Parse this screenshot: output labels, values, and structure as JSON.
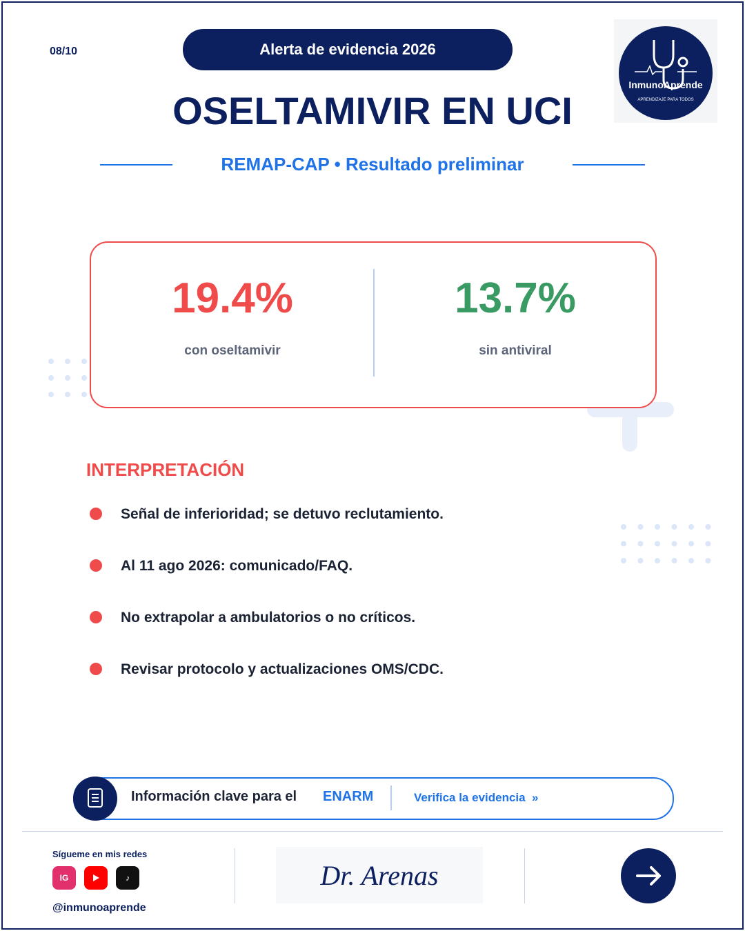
{
  "header": {
    "page": "08/10",
    "badge": "Alerta de evidencia 2026",
    "title": "OSELTAMIVIR EN UCI",
    "subtitle": "REMAP-CAP • Resultado preliminar",
    "logo": {
      "name": "InmunoAprende",
      "tagline": "APRENDIZAJE PARA TODOS"
    }
  },
  "stats": [
    {
      "value": "19.4%",
      "label": "con oseltamivir"
    },
    {
      "value": "13.7%",
      "label": "sin antiviral"
    }
  ],
  "interpretation": {
    "heading": "INTERPRETACIÓN",
    "items": [
      "Señal de inferioridad; se detuvo reclutamiento.",
      "Al 11 ago 2026: comunicado/FAQ.",
      "No extrapolar a ambulatorios o no críticos.",
      "Revisar protocolo y actualizaciones OMS/CDC."
    ]
  },
  "banner": {
    "text": "Información clave para el",
    "highlight": "ENARM",
    "link": "Verifica la evidencia  »"
  },
  "footer": {
    "follow": "Sígueme en mis redes",
    "instagram": "IG",
    "tiktok": "♪",
    "handle": "@inmunoaprende",
    "signature": "Dr. Arenas"
  }
}
